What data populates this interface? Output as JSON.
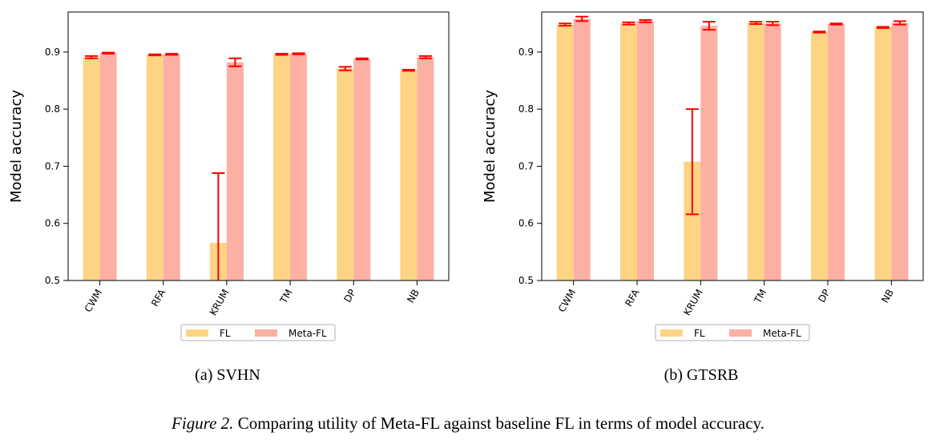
{
  "figure": {
    "caption_label": "Figure 2.",
    "caption_text": " Comparing utility of Meta-FL against baseline FL in terms of model accuracy."
  },
  "colors": {
    "fl": "#fdd384",
    "meta_fl": "#fcb0a3",
    "error_bar": "#ff0000",
    "axis": "#000000",
    "legend_border": "#cccccc"
  },
  "chart_data": [
    {
      "type": "bar",
      "subcaption": "(a)  SVHN",
      "ylabel": "Model accuracy",
      "xlabel": "",
      "categories": [
        "CWM",
        "RFA",
        "KRUM",
        "TM",
        "DP",
        "NB"
      ],
      "ylim": [
        0.5,
        0.97
      ],
      "yticks": [
        0.5,
        0.6,
        0.7,
        0.8,
        0.9
      ],
      "grid": false,
      "legend_position": "bottom-center",
      "series": [
        {
          "name": "FL",
          "values": [
            0.891,
            0.895,
            0.566,
            0.896,
            0.871,
            0.868
          ],
          "errors": [
            0.002,
            0.001,
            0.122,
            0.001,
            0.003,
            0.001
          ]
        },
        {
          "name": "Meta-FL",
          "values": [
            0.898,
            0.896,
            0.882,
            0.897,
            0.888,
            0.891
          ],
          "errors": [
            0.001,
            0.001,
            0.007,
            0.001,
            0.001,
            0.002
          ]
        }
      ]
    },
    {
      "type": "bar",
      "subcaption": "(b)  GTSRB",
      "ylabel": "Model accuracy",
      "xlabel": "",
      "categories": [
        "CWM",
        "RFA",
        "KRUM",
        "TM",
        "DP",
        "NB"
      ],
      "ylim": [
        0.5,
        0.97
      ],
      "yticks": [
        0.5,
        0.6,
        0.7,
        0.8,
        0.9
      ],
      "grid": false,
      "legend_position": "bottom-center",
      "series": [
        {
          "name": "FL",
          "values": [
            0.948,
            0.95,
            0.708,
            0.951,
            0.935,
            0.943
          ],
          "errors": [
            0.002,
            0.002,
            0.092,
            0.002,
            0.001,
            0.001
          ]
        },
        {
          "name": "Meta-FL",
          "values": [
            0.958,
            0.954,
            0.946,
            0.95,
            0.949,
            0.951
          ],
          "errors": [
            0.004,
            0.002,
            0.007,
            0.003,
            0.001,
            0.003
          ]
        }
      ]
    }
  ]
}
